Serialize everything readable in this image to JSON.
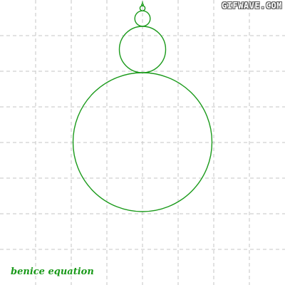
{
  "watermark": "GIFWAVE.COM",
  "caption": "benice equation",
  "colors": {
    "curve": "#1a9a1a",
    "grid": "#c4c4c4",
    "background": "#ffffff"
  }
}
